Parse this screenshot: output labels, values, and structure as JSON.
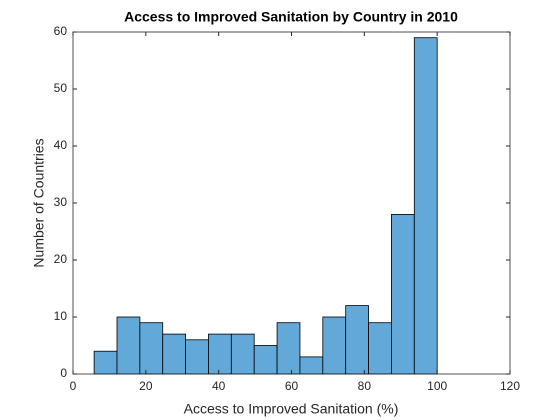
{
  "chart_data": {
    "type": "histogram",
    "title": "Access to Improved Sanitation by Country in 2010",
    "xlabel": "Access to Improved Sanitation (%)",
    "ylabel": "Number of Countries",
    "bins": [
      5.8,
      12.08,
      18.36,
      24.64,
      30.92,
      37.2,
      43.48,
      49.76,
      56.04,
      62.32,
      68.6,
      74.88,
      81.16,
      87.44,
      93.72,
      100
    ],
    "values": [
      4,
      10,
      9,
      7,
      6,
      7,
      7,
      5,
      9,
      3,
      10,
      12,
      9,
      28,
      59
    ],
    "color": "#62a8d9",
    "xlim": [
      0,
      120
    ],
    "xticks": [
      0,
      20,
      40,
      60,
      80,
      100,
      120
    ],
    "ylim": [
      0,
      60
    ],
    "yticks": [
      0,
      10,
      20,
      30,
      40,
      50,
      60
    ],
    "grid": false
  }
}
